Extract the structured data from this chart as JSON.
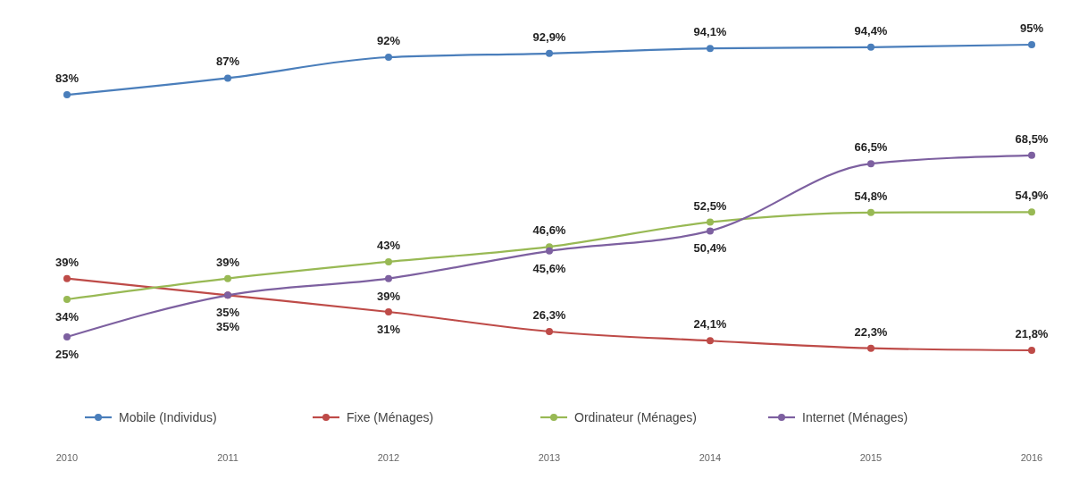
{
  "chart_data": {
    "type": "line",
    "categories": [
      "2010",
      "2011",
      "2012",
      "2013",
      "2014",
      "2015",
      "2016"
    ],
    "series": [
      {
        "name": "Mobile (Individus)",
        "color": "#4a7ebb",
        "values": [
          83,
          87,
          92,
          92.9,
          94.1,
          94.4,
          95
        ],
        "value_labels": [
          "83%",
          "87%",
          "92%",
          "92,9%",
          "94,1%",
          "94,4%",
          "95%"
        ]
      },
      {
        "name": "Fixe (Ménages)",
        "color": "#be4b48",
        "values": [
          39,
          35,
          31,
          26.3,
          24.1,
          22.3,
          21.8
        ],
        "value_labels": [
          "39%",
          "35%",
          "31%",
          "26,3%",
          "24,1%",
          "22,3%",
          "21,8%"
        ]
      },
      {
        "name": "Ordinateur (Ménages)",
        "color": "#98b954",
        "values": [
          34,
          39,
          43,
          46.6,
          52.5,
          54.8,
          54.9
        ],
        "value_labels": [
          "34%",
          "39%",
          "43%",
          "46,6%",
          "52,5%",
          "54,8%",
          "54,9%"
        ]
      },
      {
        "name": "Internet (Ménages)",
        "color": "#7d60a0",
        "values": [
          25,
          35,
          39,
          45.6,
          50.4,
          66.5,
          68.5
        ],
        "value_labels": [
          "25%",
          "35%",
          "39%",
          "45,6%",
          "50,4%",
          "66,5%",
          "68,5%"
        ]
      }
    ],
    "tick_labels": "x",
    "marker": "circle",
    "legend": "bottom"
  }
}
